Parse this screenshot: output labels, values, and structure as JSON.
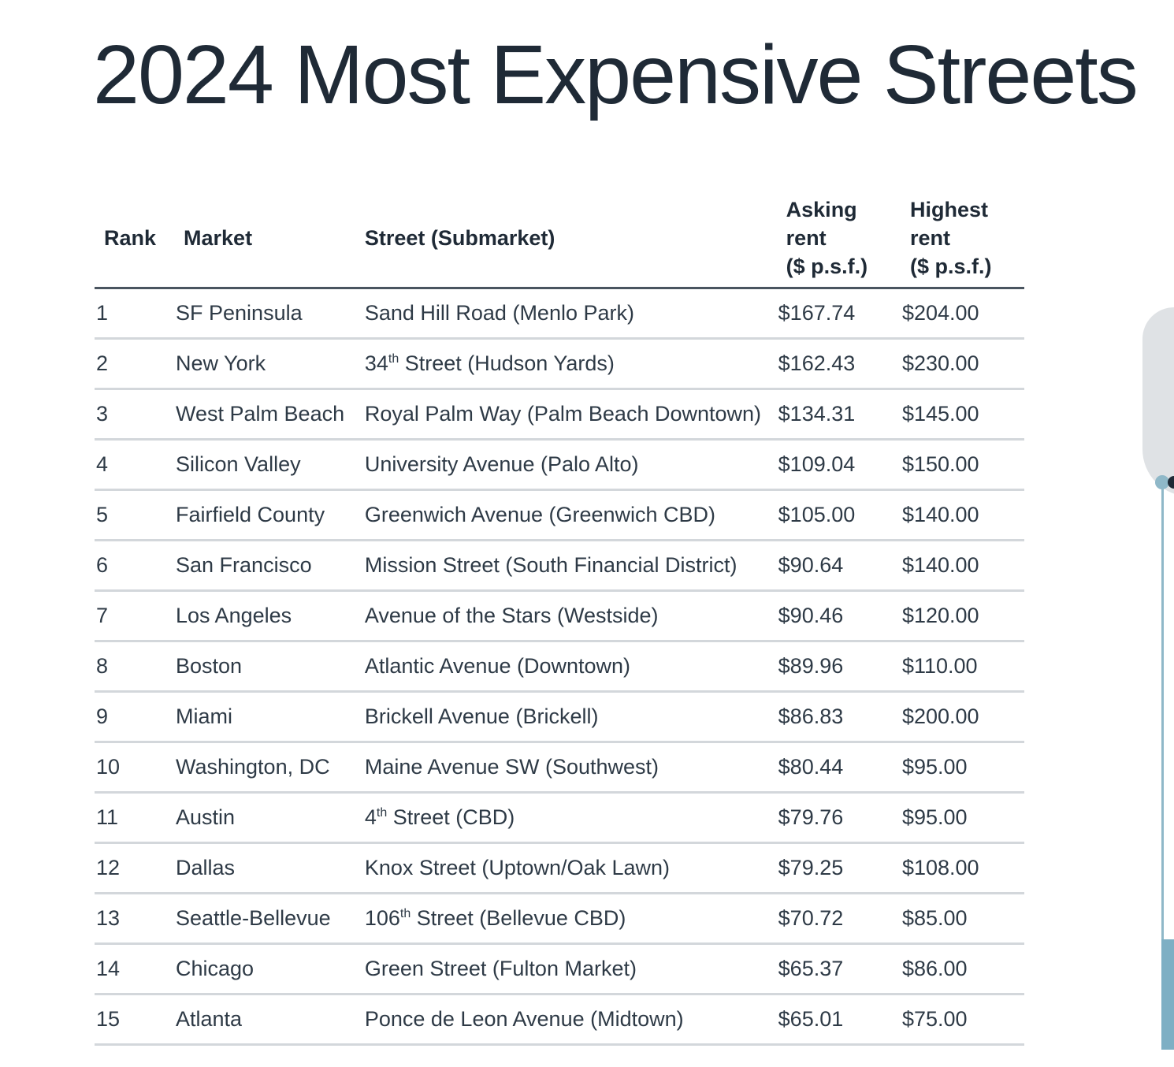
{
  "title": "2024 Most Expensive Streets",
  "table": {
    "headers": {
      "rank": "Rank",
      "market": "Market",
      "street": "Street (Submarket)",
      "asking": [
        "Asking",
        "rent",
        "($ p.s.f.)"
      ],
      "highest": [
        "Highest",
        "rent",
        "($ p.s.f.)"
      ]
    },
    "rows": [
      {
        "rank": "1",
        "market": "SF Peninsula",
        "street_pre": "Sand Hill Road (Menlo Park)",
        "street_sup": "",
        "street_post": "",
        "asking": "$167.74",
        "highest": "$204.00"
      },
      {
        "rank": "2",
        "market": "New York",
        "street_pre": "34",
        "street_sup": "th",
        "street_post": " Street (Hudson Yards)",
        "asking": "$162.43",
        "highest": "$230.00"
      },
      {
        "rank": "3",
        "market": "West Palm Beach",
        "street_pre": "Royal Palm Way (Palm Beach Downtown)",
        "street_sup": "",
        "street_post": "",
        "asking": "$134.31",
        "highest": "$145.00"
      },
      {
        "rank": "4",
        "market": "Silicon Valley",
        "street_pre": "University Avenue (Palo Alto)",
        "street_sup": "",
        "street_post": "",
        "asking": "$109.04",
        "highest": "$150.00"
      },
      {
        "rank": "5",
        "market": "Fairfield County",
        "street_pre": "Greenwich Avenue (Greenwich CBD)",
        "street_sup": "",
        "street_post": "",
        "asking": "$105.00",
        "highest": "$140.00"
      },
      {
        "rank": "6",
        "market": "San Francisco",
        "street_pre": "Mission Street (South Financial District)",
        "street_sup": "",
        "street_post": "",
        "asking": "$90.64",
        "highest": "$140.00"
      },
      {
        "rank": "7",
        "market": "Los Angeles",
        "street_pre": "Avenue of the Stars (Westside)",
        "street_sup": "",
        "street_post": "",
        "asking": "$90.46",
        "highest": "$120.00"
      },
      {
        "rank": "8",
        "market": "Boston",
        "street_pre": "Atlantic Avenue (Downtown)",
        "street_sup": "",
        "street_post": "",
        "asking": "$89.96",
        "highest": "$110.00"
      },
      {
        "rank": "9",
        "market": "Miami",
        "street_pre": "Brickell Avenue (Brickell)",
        "street_sup": "",
        "street_post": "",
        "asking": "$86.83",
        "highest": "$200.00"
      },
      {
        "rank": "10",
        "market": "Washington, DC",
        "street_pre": "Maine Avenue  SW (Southwest)",
        "street_sup": "",
        "street_post": "",
        "asking": "$80.44",
        "highest": "$95.00"
      },
      {
        "rank": "11",
        "market": "Austin",
        "street_pre": "4",
        "street_sup": "th",
        "street_post": " Street (CBD)",
        "asking": "$79.76",
        "highest": "$95.00"
      },
      {
        "rank": "12",
        "market": "Dallas",
        "street_pre": "Knox Street (Uptown/Oak Lawn)",
        "street_sup": "",
        "street_post": "",
        "asking": "$79.25",
        "highest": "$108.00"
      },
      {
        "rank": "13",
        "market": "Seattle-Bellevue",
        "street_pre": "106",
        "street_sup": "th",
        "street_post": " Street (Bellevue CBD)",
        "asking": "$70.72",
        "highest": "$85.00"
      },
      {
        "rank": "14",
        "market": "Chicago",
        "street_pre": "Green Street (Fulton Market)",
        "street_sup": "",
        "street_post": "",
        "asking": "$65.37",
        "highest": "$86.00"
      },
      {
        "rank": "15",
        "market": "Atlanta",
        "street_pre": "Ponce de Leon Avenue (Midtown)",
        "street_sup": "",
        "street_post": "",
        "asking": "$65.01",
        "highest": "$75.00"
      }
    ]
  },
  "colors": {
    "text": "#2e3a46",
    "header_rule": "#4a5560",
    "row_rule": "#d3d7db",
    "accent": "#8fb8c8"
  }
}
